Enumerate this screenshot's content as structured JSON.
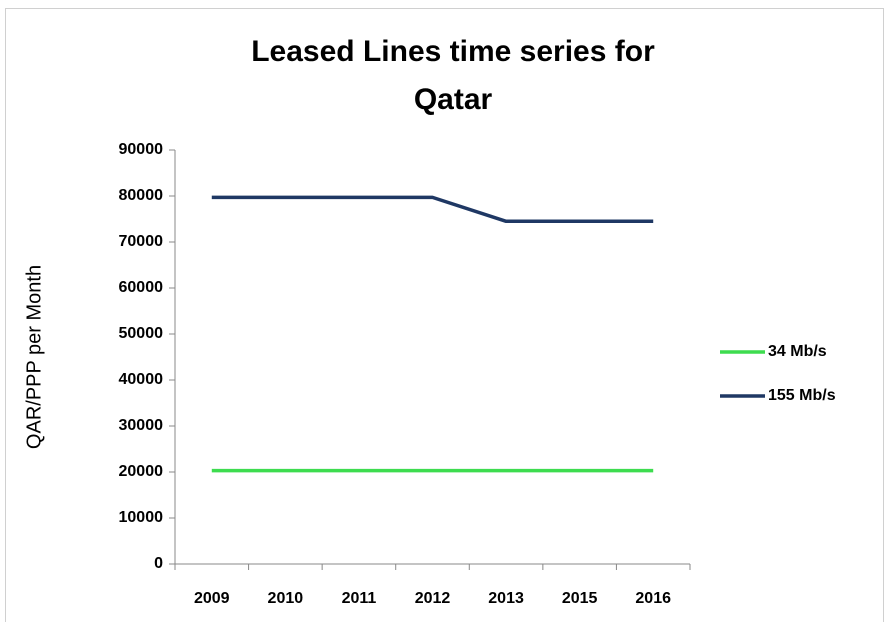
{
  "chart_data": {
    "type": "line",
    "title": "Leased Lines time series for Qatar",
    "y_label": "QAR/PPP per Month",
    "categories": [
      "2009",
      "2010",
      "2011",
      "2012",
      "2013",
      "2015",
      "2016"
    ],
    "series": [
      {
        "name": "34 Mb/s",
        "color": "#3ddc4f",
        "values": [
          20300,
          20300,
          20300,
          20300,
          20300,
          20300,
          20300
        ]
      },
      {
        "name": "155 Mb/s",
        "color": "#1f3864",
        "values": [
          79700,
          79700,
          79700,
          79700,
          74500,
          74500,
          74500
        ]
      }
    ],
    "ylim": [
      0,
      90000
    ],
    "yticks": [
      0,
      10000,
      20000,
      30000,
      40000,
      50000,
      60000,
      70000,
      80000,
      90000
    ],
    "grid": false,
    "legend": "right"
  }
}
